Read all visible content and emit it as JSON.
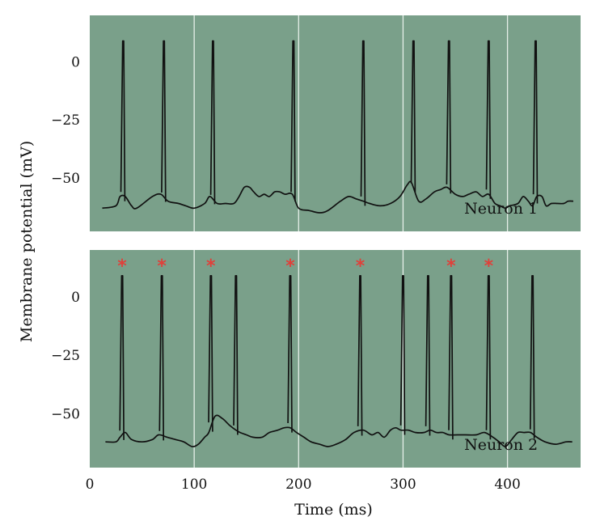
{
  "chart_data": {
    "type": "line",
    "xlabel": "Time (ms)",
    "ylabel": "Membrane potential (mV)",
    "xlim": [
      0,
      470
    ],
    "xticks": [
      0,
      100,
      200,
      300,
      400
    ],
    "yticks": [
      0,
      -25,
      -50
    ],
    "ylim": [
      -73,
      20
    ],
    "grid": true,
    "colors": {
      "panel_bg": "#7aa08a",
      "grid": "#e6efe9",
      "trace": "#111111",
      "marker": "#e0403a"
    },
    "panels": [
      {
        "label": "Neuron 1",
        "baseline": [
          [
            12,
            -63
          ],
          [
            25,
            -62
          ],
          [
            29,
            -58
          ],
          [
            34,
            -58
          ],
          [
            40,
            -62
          ],
          [
            45,
            -63
          ],
          [
            60,
            -58
          ],
          [
            68,
            -57
          ],
          [
            75,
            -60
          ],
          [
            85,
            -61
          ],
          [
            92,
            -62
          ],
          [
            100,
            -63
          ],
          [
            110,
            -61
          ],
          [
            115,
            -58
          ],
          [
            122,
            -61
          ],
          [
            130,
            -61
          ],
          [
            138,
            -61
          ],
          [
            143,
            -58
          ],
          [
            148,
            -54
          ],
          [
            153,
            -54
          ],
          [
            157,
            -56
          ],
          [
            162,
            -58
          ],
          [
            167,
            -57
          ],
          [
            172,
            -58
          ],
          [
            177,
            -56
          ],
          [
            182,
            -56
          ],
          [
            187,
            -57
          ],
          [
            194,
            -57
          ],
          [
            200,
            -63
          ],
          [
            210,
            -64
          ],
          [
            220,
            -65
          ],
          [
            228,
            -64
          ],
          [
            240,
            -60
          ],
          [
            248,
            -58
          ],
          [
            255,
            -59
          ],
          [
            262,
            -60
          ],
          [
            268,
            -61
          ],
          [
            278,
            -62
          ],
          [
            288,
            -61
          ],
          [
            297,
            -58
          ],
          [
            304,
            -53
          ],
          [
            308,
            -52
          ],
          [
            315,
            -60
          ],
          [
            322,
            -59
          ],
          [
            330,
            -56
          ],
          [
            336,
            -55
          ],
          [
            342,
            -54
          ],
          [
            350,
            -57
          ],
          [
            357,
            -58
          ],
          [
            363,
            -57
          ],
          [
            370,
            -56
          ],
          [
            376,
            -58
          ],
          [
            382,
            -57
          ],
          [
            388,
            -61
          ],
          [
            393,
            -62
          ],
          [
            398,
            -63
          ],
          [
            402,
            -62
          ],
          [
            410,
            -61
          ],
          [
            415,
            -58
          ],
          [
            420,
            -60
          ],
          [
            424,
            -62
          ],
          [
            428,
            -58
          ],
          [
            433,
            -58
          ],
          [
            437,
            -62
          ],
          [
            442,
            -61
          ],
          [
            448,
            -61
          ],
          [
            454,
            -61
          ],
          [
            458,
            -60
          ],
          [
            463,
            -60
          ]
        ],
        "spikes": [
          32,
          71,
          118,
          195,
          262,
          310,
          344,
          382,
          427
        ]
      },
      {
        "label": "Neuron 2",
        "baseline": [
          [
            15,
            -62
          ],
          [
            25,
            -62
          ],
          [
            29,
            -60
          ],
          [
            34,
            -58
          ],
          [
            40,
            -61
          ],
          [
            50,
            -62
          ],
          [
            60,
            -61
          ],
          [
            66,
            -59
          ],
          [
            74,
            -60
          ],
          [
            82,
            -61
          ],
          [
            90,
            -62
          ],
          [
            98,
            -64
          ],
          [
            104,
            -63
          ],
          [
            110,
            -60
          ],
          [
            114,
            -58
          ],
          [
            120,
            -51
          ],
          [
            127,
            -52
          ],
          [
            134,
            -55
          ],
          [
            140,
            -57
          ],
          [
            144,
            -58
          ],
          [
            150,
            -59
          ],
          [
            156,
            -60
          ],
          [
            165,
            -60
          ],
          [
            172,
            -58
          ],
          [
            180,
            -57
          ],
          [
            186,
            -56
          ],
          [
            192,
            -56
          ],
          [
            198,
            -58
          ],
          [
            205,
            -60
          ],
          [
            212,
            -62
          ],
          [
            220,
            -63
          ],
          [
            228,
            -64
          ],
          [
            236,
            -63
          ],
          [
            245,
            -61
          ],
          [
            253,
            -58
          ],
          [
            262,
            -57
          ],
          [
            270,
            -59
          ],
          [
            276,
            -58
          ],
          [
            282,
            -60
          ],
          [
            288,
            -57
          ],
          [
            293,
            -56
          ],
          [
            298,
            -57
          ],
          [
            305,
            -57
          ],
          [
            312,
            -58
          ],
          [
            320,
            -58
          ],
          [
            326,
            -57
          ],
          [
            332,
            -58
          ],
          [
            338,
            -58
          ],
          [
            344,
            -59
          ],
          [
            352,
            -59
          ],
          [
            360,
            -59
          ],
          [
            370,
            -59
          ],
          [
            378,
            -58
          ],
          [
            386,
            -60
          ],
          [
            392,
            -62
          ],
          [
            398,
            -64
          ],
          [
            404,
            -61
          ],
          [
            410,
            -58
          ],
          [
            416,
            -58
          ],
          [
            422,
            -58
          ],
          [
            428,
            -60
          ],
          [
            436,
            -62
          ],
          [
            446,
            -63
          ],
          [
            456,
            -62
          ],
          [
            462,
            -62
          ]
        ],
        "spikes": [
          31,
          69,
          116,
          140,
          192,
          259,
          300,
          324,
          346,
          382,
          424
        ],
        "starred_spikes": [
          31,
          69,
          116,
          192,
          259,
          346,
          382
        ],
        "marker": "*"
      }
    ]
  }
}
